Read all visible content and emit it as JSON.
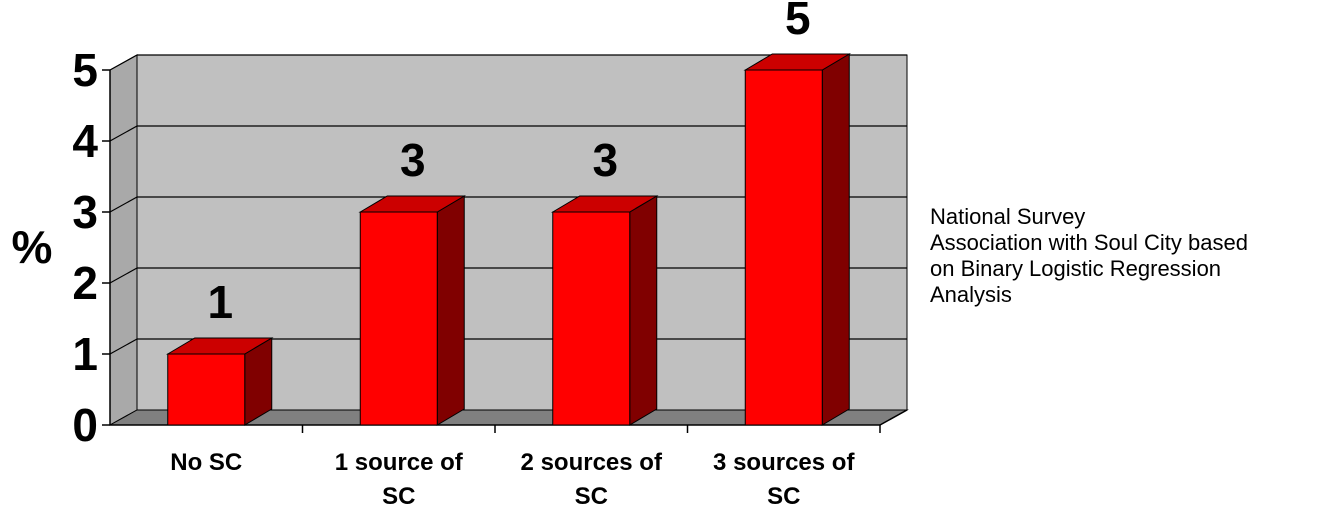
{
  "chart_data": {
    "type": "bar",
    "three_d": true,
    "categories": [
      [
        "No SC"
      ],
      [
        "1 source of",
        "SC"
      ],
      [
        "2 sources of",
        "SC"
      ],
      [
        "3 sources of",
        "SC"
      ]
    ],
    "values": [
      1,
      3,
      3,
      5
    ],
    "data_labels": [
      "1",
      "3",
      "3",
      "5"
    ],
    "ylabel": "%",
    "ylim": [
      0,
      5
    ],
    "yticks": [
      "0",
      "1",
      "2",
      "3",
      "4",
      "5"
    ],
    "grid": true,
    "colors": {
      "bar_front": "#ff0000",
      "bar_top": "#cc0000",
      "bar_side": "#800000",
      "wall": "#c0c0c0",
      "floor": "#808080",
      "side_wall": "#a9a9a9"
    }
  },
  "note": {
    "lines": [
      "National Survey",
      "Association with Soul City based",
      "on Binary Logistic  Regression",
      "Analysis"
    ]
  }
}
